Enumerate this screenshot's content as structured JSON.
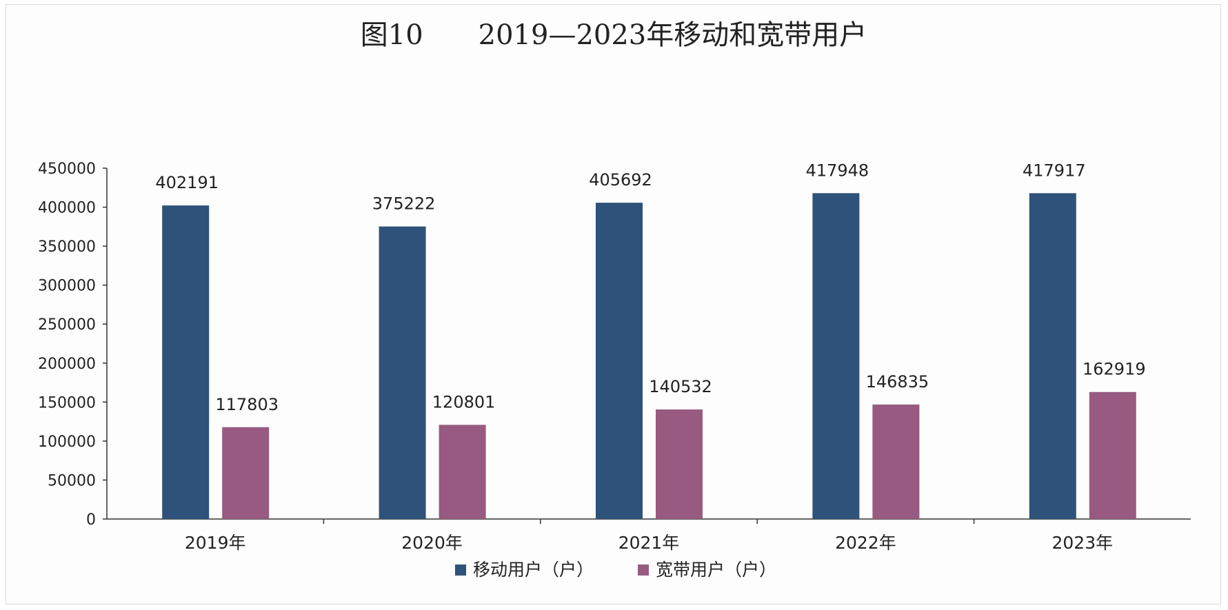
{
  "chart_data": {
    "type": "bar",
    "title": "图10　　2019—2023年移动和宽带用户",
    "categories": [
      "2019年",
      "2020年",
      "2021年",
      "2022年",
      "2023年"
    ],
    "series": [
      {
        "name": "移动用户（户）",
        "color": "#2e5279",
        "values": [
          402191,
          375222,
          405692,
          417948,
          417917
        ]
      },
      {
        "name": "宽带用户（户）",
        "color": "#985a80",
        "values": [
          117803,
          120801,
          140532,
          146835,
          162919
        ]
      }
    ],
    "ylim": [
      0,
      450000
    ],
    "yticks": [
      0,
      50000,
      100000,
      150000,
      200000,
      250000,
      300000,
      350000,
      400000,
      450000
    ],
    "grid": false,
    "legend": "bottom",
    "data_labels": true
  }
}
